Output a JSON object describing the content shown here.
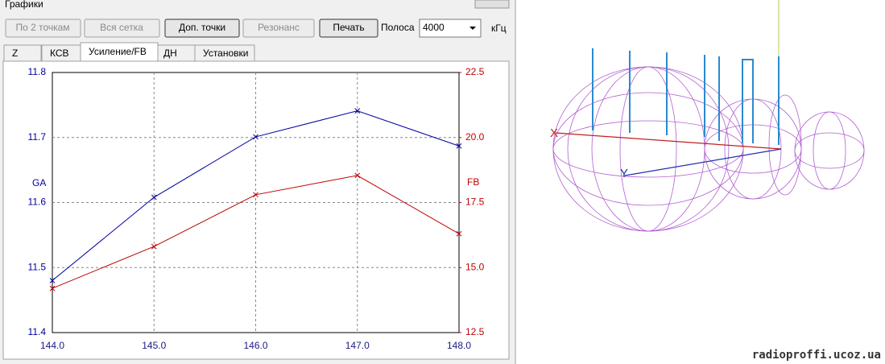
{
  "window": {
    "title": "Графики"
  },
  "toolbar": {
    "buttons": [
      "По 2 точкам",
      "Вся сетка",
      "Доп. точки",
      "Резонанс",
      "Печать"
    ],
    "band_label": "Полоса",
    "band_value": "4000",
    "band_unit": "кГц"
  },
  "tabs": [
    "Z",
    "КСВ",
    "Усиление/FB",
    "ДН",
    "Установки"
  ],
  "chart_data": {
    "type": "line",
    "x": [
      144,
      145,
      146,
      147,
      148
    ],
    "xlim": [
      144,
      148
    ],
    "xticks": [
      {
        "value": 144,
        "label": "144.0"
      },
      {
        "value": 145,
        "label": "145.0"
      },
      {
        "value": 146,
        "label": "146.0"
      },
      {
        "value": 147,
        "label": "147.0"
      },
      {
        "value": 148,
        "label": "148.0"
      }
    ],
    "ylim": [
      11.4,
      11.8
    ],
    "yticks": [
      11.4,
      11.5,
      11.6,
      11.7,
      11.8
    ],
    "y2lim": [
      12.5,
      22.5
    ],
    "y2ticks": [
      12.5,
      {
        "value": 15,
        "label": "15.0"
      },
      17.5,
      {
        "value": 20,
        "label": "20.0"
      },
      22.5
    ],
    "grid": true,
    "series": [
      {
        "name": "GA",
        "color": "#0000a0",
        "values": [
          11.48,
          11.608,
          11.701,
          11.741,
          11.687
        ]
      },
      {
        "name": "FB",
        "color": "#c00000",
        "axis": "y2",
        "values": [
          14.2,
          15.81,
          17.8,
          18.54,
          16.3
        ]
      }
    ]
  },
  "pattern": {
    "axis_labels": [
      "X",
      "Y"
    ]
  },
  "watermark": "radioproffi.ucoz.ua"
}
